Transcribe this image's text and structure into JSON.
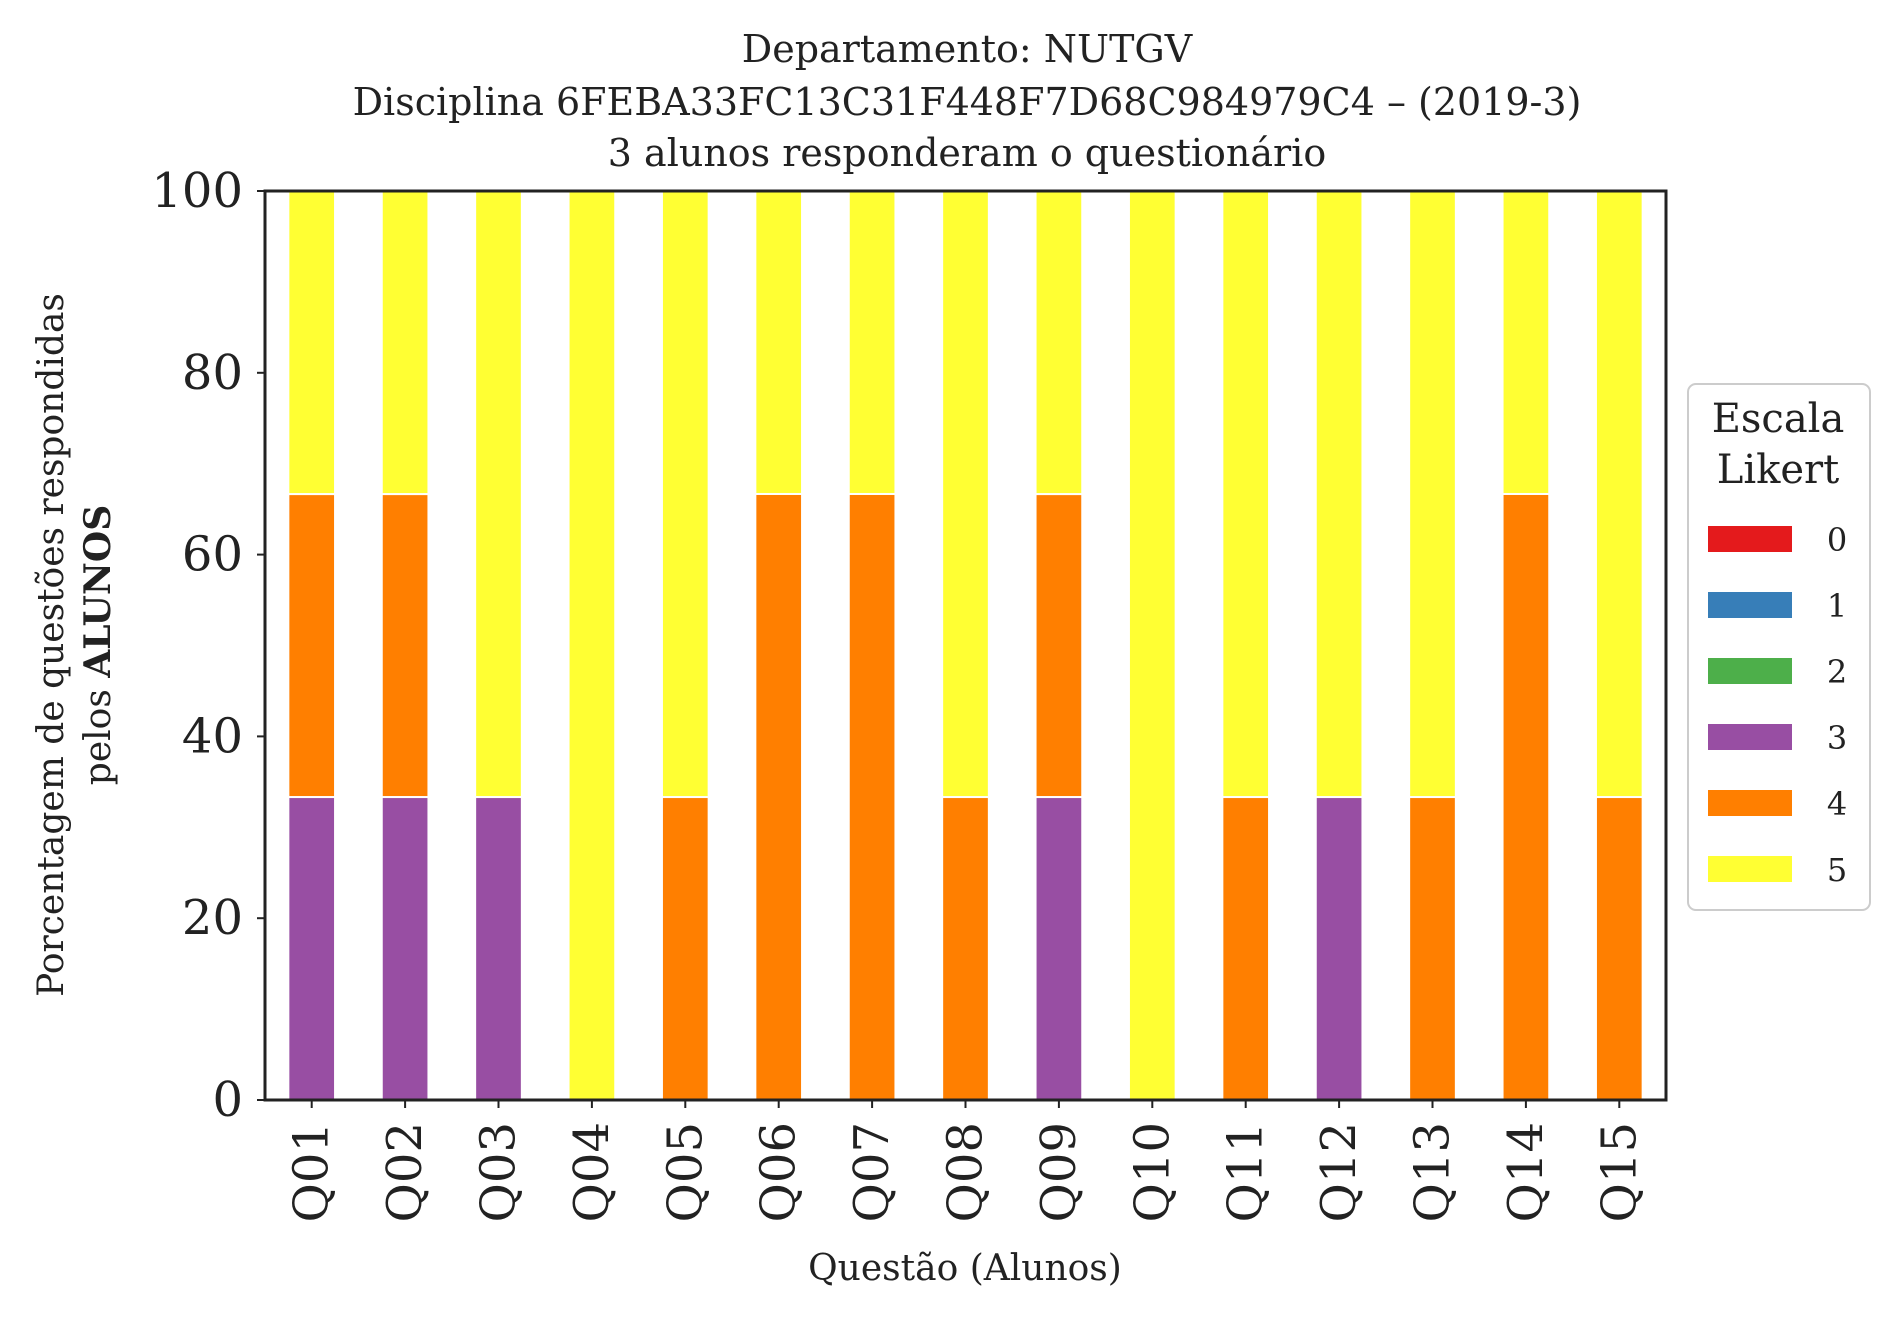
{
  "chart_data": {
    "type": "bar",
    "stacked": true,
    "title": [
      "Departamento: NUTGV",
      "Disciplina 6FEBA33FC13C31F448F7D68C984979C4 – (2019-3)",
      "3 alunos responderam o questionário"
    ],
    "xlabel": "Questão (Alunos)",
    "ylabel": {
      "line1": "Porcentagem de questões respondidas",
      "line2_prefix": "pelos ",
      "line2_bold": "ALUNOS"
    },
    "ylim": [
      0,
      100
    ],
    "yticks": [
      0,
      20,
      40,
      60,
      80,
      100
    ],
    "grid": false,
    "categories": [
      "Q01",
      "Q02",
      "Q03",
      "Q04",
      "Q05",
      "Q06",
      "Q07",
      "Q08",
      "Q09",
      "Q10",
      "Q11",
      "Q12",
      "Q13",
      "Q14",
      "Q15"
    ],
    "legend": {
      "title": [
        "Escala",
        "Likert"
      ],
      "placement": "right-center"
    },
    "series": [
      {
        "name": "0",
        "color": "#e41a1c",
        "values": [
          0,
          0,
          0,
          0,
          0,
          0,
          0,
          0,
          0,
          0,
          0,
          0,
          0,
          0,
          0
        ]
      },
      {
        "name": "1",
        "color": "#377eb8",
        "values": [
          0,
          0,
          0,
          0,
          0,
          0,
          0,
          0,
          0,
          0,
          0,
          0,
          0,
          0,
          0
        ]
      },
      {
        "name": "2",
        "color": "#4daf4a",
        "values": [
          0,
          0,
          0,
          0,
          0,
          0,
          0,
          0,
          0,
          0,
          0,
          0,
          0,
          0,
          0
        ]
      },
      {
        "name": "3",
        "color": "#984ea3",
        "values": [
          33.33,
          33.33,
          33.33,
          0,
          0,
          0,
          0,
          0,
          33.33,
          0,
          0,
          33.33,
          0,
          0,
          0
        ]
      },
      {
        "name": "4",
        "color": "#ff7f00",
        "values": [
          33.33,
          33.33,
          0,
          0,
          33.33,
          66.67,
          66.67,
          33.33,
          33.33,
          0,
          33.33,
          0,
          33.33,
          66.67,
          33.33
        ]
      },
      {
        "name": "5",
        "color": "#ffff33",
        "values": [
          33.33,
          33.33,
          66.67,
          100,
          66.67,
          33.33,
          33.33,
          66.67,
          33.33,
          100,
          66.67,
          66.67,
          66.67,
          33.33,
          66.67
        ]
      }
    ]
  }
}
